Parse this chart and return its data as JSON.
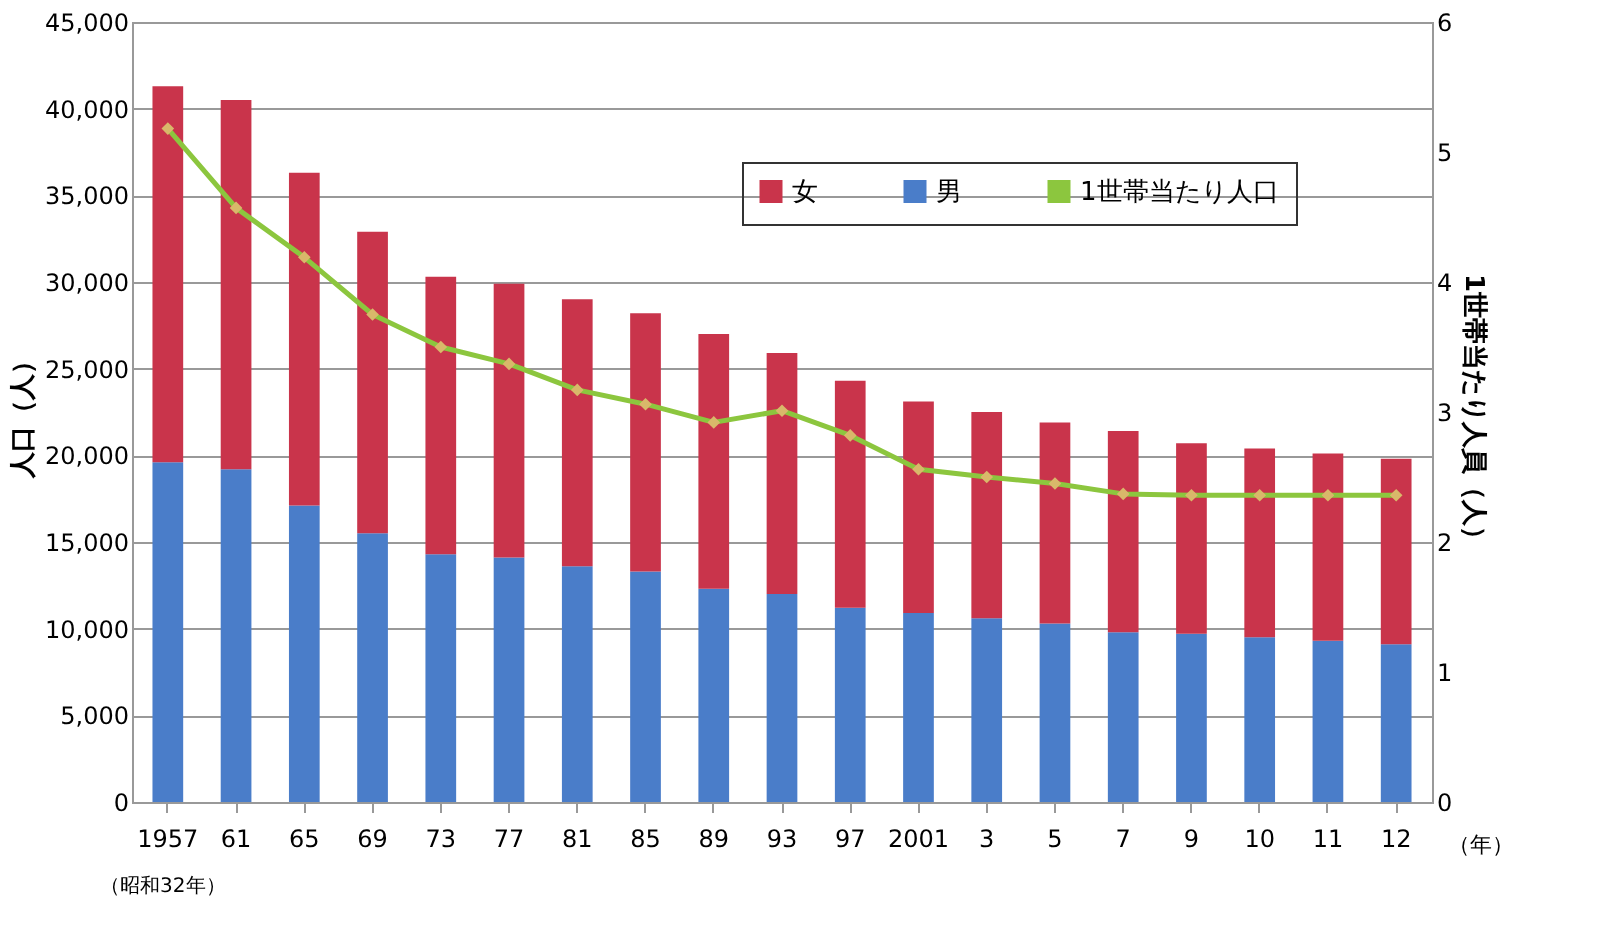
{
  "chart_data": {
    "type": "bar",
    "stacked": true,
    "categories": [
      "1957",
      "61",
      "65",
      "69",
      "73",
      "77",
      "81",
      "85",
      "89",
      "93",
      "97",
      "2001",
      "3",
      "5",
      "7",
      "9",
      "10",
      "11",
      "12"
    ],
    "series": [
      {
        "name": "男",
        "color": "#4a7dc9",
        "values": [
          19600,
          19200,
          17100,
          15500,
          14300,
          14100,
          13600,
          13300,
          12300,
          12000,
          11200,
          10900,
          10600,
          10300,
          9800,
          9700,
          9500,
          9300,
          9100
        ]
      },
      {
        "name": "女",
        "color": "#c9344b",
        "values": [
          21700,
          21300,
          19200,
          17400,
          16000,
          15800,
          15400,
          14900,
          14700,
          13900,
          13100,
          12200,
          11900,
          11600,
          11600,
          11000,
          10900,
          10800,
          10700
        ]
      },
      {
        "name": "1世帯当たり人口",
        "type": "line",
        "axis": "y2",
        "color": "#8cc63e",
        "marker": "diamond",
        "values": [
          5.18,
          4.57,
          4.19,
          3.75,
          3.5,
          3.37,
          3.17,
          3.06,
          2.92,
          3.01,
          2.82,
          2.56,
          2.5,
          2.45,
          2.37,
          2.36,
          2.36,
          2.36,
          2.36
        ]
      }
    ],
    "ylabel": "人口（人）",
    "y2label": "1世帯当たり人員（人）",
    "ylim": [
      0,
      45000
    ],
    "yticks": [
      0,
      {
        "value": 5000,
        "label": "5,000"
      },
      {
        "value": 10000,
        "label": "10,000"
      },
      {
        "value": 15000,
        "label": "15,000"
      },
      {
        "value": 20000,
        "label": "20,000"
      },
      {
        "value": 25000,
        "label": "25,000"
      },
      {
        "value": 30000,
        "label": "30,000"
      },
      {
        "value": 35000,
        "label": "35,000"
      },
      {
        "value": 40000,
        "label": "40,000"
      },
      {
        "value": 45000,
        "label": "45,000"
      }
    ],
    "y2lim": [
      0,
      6
    ],
    "y2ticks": [
      0,
      1,
      2,
      3,
      4,
      5,
      6
    ],
    "grid": "y",
    "legend": "top right",
    "annotations": [
      "（昭和32年）",
      "（年）"
    ]
  }
}
